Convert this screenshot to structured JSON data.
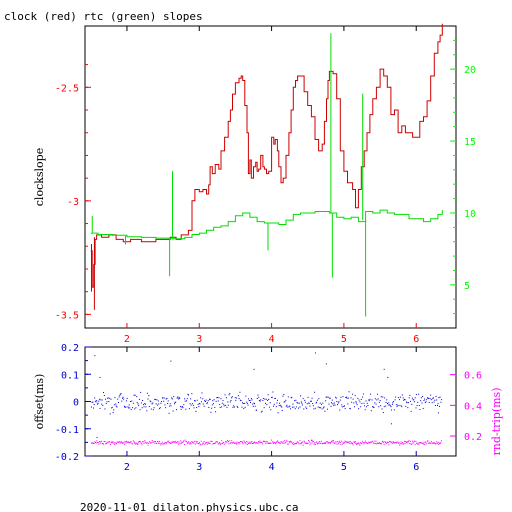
{
  "chart_data": [
    {
      "type": "line",
      "title": "clock (red) rtc (green) slopes",
      "ylabel": "clockslope",
      "xlim": [
        1.42,
        6.55
      ],
      "ylim": [
        -3.56,
        -2.23
      ],
      "y2lim": [
        2.0,
        23.0
      ],
      "grid": false,
      "colors": {
        "frame": "#000000",
        "left_axis": "#ff0000",
        "right_axis": "#00ff00",
        "bottom_axis": "#ff0000"
      },
      "x_ticks": [
        2,
        3,
        4,
        5,
        6
      ],
      "x_tick_labels": [
        "2",
        "3",
        "4",
        "5",
        "6"
      ],
      "y_ticks": [
        -2.5,
        -3,
        -3.5
      ],
      "y_tick_labels": [
        "-2.5",
        "-3",
        "-3.5"
      ],
      "y2_ticks": [
        20,
        15,
        10,
        5
      ],
      "y2_tick_labels": [
        "20",
        "15",
        "10",
        "5"
      ],
      "series": [
        {
          "axis": "left",
          "color": "#cc0000",
          "x": [
            1.5,
            1.52,
            1.54,
            1.56,
            1.58,
            1.65,
            1.75,
            1.85,
            1.95,
            2.05,
            2.2,
            2.4,
            2.6,
            2.68,
            2.75,
            2.85,
            2.9,
            2.94,
            2.97,
            3.0,
            3.05,
            3.1,
            3.13,
            3.15,
            3.18,
            3.22,
            3.27,
            3.3,
            3.35,
            3.4,
            3.43,
            3.46,
            3.5,
            3.55,
            3.58,
            3.6,
            3.63,
            3.66,
            3.68,
            3.7,
            3.72,
            3.75,
            3.78,
            3.8,
            3.82,
            3.85,
            3.88,
            3.9,
            3.93,
            3.96,
            4.0,
            4.03,
            4.05,
            4.08,
            4.1,
            4.13,
            4.16,
            4.2,
            4.24,
            4.27,
            4.3,
            4.33,
            4.36,
            4.4,
            4.45,
            4.5,
            4.55,
            4.6,
            4.65,
            4.7,
            4.73,
            4.76,
            4.78,
            4.8,
            4.85,
            4.9,
            4.95,
            5.0,
            5.05,
            5.08,
            5.12,
            5.16,
            5.2,
            5.24,
            5.28,
            5.32,
            5.36,
            5.4,
            5.45,
            5.5,
            5.55,
            5.6,
            5.65,
            5.7,
            5.75,
            5.8,
            5.85,
            5.9,
            5.95,
            6.0,
            6.05,
            6.1,
            6.15,
            6.2,
            6.25,
            6.3,
            6.33,
            6.36
          ],
          "values": [
            -3.22,
            -3.38,
            -3.28,
            -3.17,
            -3.15,
            -3.16,
            -3.15,
            -3.17,
            -3.18,
            -3.17,
            -3.18,
            -3.17,
            -3.16,
            -3.17,
            -3.15,
            -3.13,
            -3.0,
            -2.95,
            -2.95,
            -2.96,
            -2.95,
            -2.97,
            -2.93,
            -2.85,
            -2.88,
            -2.84,
            -2.86,
            -2.78,
            -2.72,
            -2.65,
            -2.6,
            -2.53,
            -2.48,
            -2.46,
            -2.45,
            -2.47,
            -2.58,
            -2.7,
            -2.88,
            -2.82,
            -2.9,
            -2.85,
            -2.83,
            -2.87,
            -2.86,
            -2.8,
            -2.85,
            -2.86,
            -2.88,
            -2.87,
            -2.72,
            -2.75,
            -2.73,
            -2.78,
            -2.85,
            -2.92,
            -2.9,
            -2.8,
            -2.7,
            -2.6,
            -2.5,
            -2.47,
            -2.45,
            -2.45,
            -2.52,
            -2.58,
            -2.63,
            -2.73,
            -2.78,
            -2.75,
            -2.65,
            -2.55,
            -2.47,
            -2.43,
            -2.44,
            -2.55,
            -2.78,
            -2.87,
            -2.92,
            -2.92,
            -2.95,
            -3.03,
            -2.95,
            -2.85,
            -2.78,
            -2.7,
            -2.62,
            -2.55,
            -2.5,
            -2.42,
            -2.45,
            -2.5,
            -2.62,
            -2.6,
            -2.7,
            -2.67,
            -2.7,
            -2.7,
            -2.72,
            -2.72,
            -2.65,
            -2.63,
            -2.56,
            -2.45,
            -2.35,
            -2.3,
            -2.27,
            -2.22
          ]
        },
        {
          "axis": "right",
          "color": "#00dd00",
          "x": [
            1.5,
            1.6,
            1.8,
            2.0,
            2.2,
            2.4,
            2.6,
            2.8,
            2.9,
            3.0,
            3.1,
            3.2,
            3.3,
            3.4,
            3.5,
            3.6,
            3.7,
            3.8,
            3.9,
            4.0,
            4.1,
            4.2,
            4.3,
            4.4,
            4.5,
            4.6,
            4.7,
            4.8,
            4.9,
            5.0,
            5.1,
            5.2,
            5.3,
            5.4,
            5.5,
            5.6,
            5.7,
            5.8,
            5.9,
            6.0,
            6.1,
            6.2,
            6.3,
            6.36
          ],
          "values": [
            8.6,
            8.5,
            8.45,
            8.35,
            8.3,
            8.25,
            8.2,
            8.3,
            8.5,
            8.6,
            8.8,
            9.0,
            9.1,
            9.4,
            9.8,
            10.0,
            9.7,
            9.4,
            9.3,
            9.3,
            9.2,
            9.5,
            9.9,
            10.0,
            10.0,
            10.1,
            10.1,
            10.0,
            9.7,
            9.6,
            9.7,
            9.4,
            10.1,
            10.0,
            10.2,
            10.0,
            9.9,
            9.9,
            9.6,
            9.6,
            9.4,
            9.6,
            9.9,
            10.2
          ]
        }
      ],
      "spikes": [
        {
          "axis": "left",
          "color": "#cc0000",
          "x": [
            1.51,
            1.55
          ],
          "from": [
            -3.19,
            -3.16
          ],
          "to": [
            -3.4,
            -3.48
          ]
        },
        {
          "axis": "right",
          "color": "#00dd00",
          "x": [
            1.52,
            1.98,
            2.59,
            2.63,
            3.95,
            4.82,
            4.84,
            5.26,
            5.3
          ],
          "from": [
            8.6,
            8.4,
            8.2,
            8.2,
            9.3,
            10.0,
            10.0,
            9.5,
            9.5
          ],
          "to": [
            9.8,
            7.8,
            5.6,
            12.9,
            7.4,
            22.5,
            5.5,
            18.3,
            2.8
          ]
        }
      ]
    },
    {
      "type": "scatter",
      "ylabel": "offset(ms)",
      "y2label": "rnd-trip(ms)",
      "xlim": [
        1.42,
        6.55
      ],
      "ylim": [
        -0.2,
        0.2
      ],
      "y2lim": [
        0.07,
        0.78
      ],
      "grid": false,
      "colors": {
        "frame": "#000000",
        "left_axis": "#0000cc",
        "right_axis": "#ff00ff",
        "bottom_axis": "#0000cc"
      },
      "x_ticks": [
        2,
        3,
        4,
        5,
        6
      ],
      "x_tick_labels": [
        "2",
        "3",
        "4",
        "5",
        "6"
      ],
      "y_ticks": [
        0.2,
        0.1,
        0,
        -0.1,
        -0.2
      ],
      "y_tick_labels": [
        "0.2",
        "0.1",
        "0",
        "-0.1",
        "-0.2"
      ],
      "y2_ticks": [
        0.6,
        0.4,
        0.2
      ],
      "y2_tick_labels": [
        "0.6",
        "0.4",
        "0.2"
      ],
      "series": [
        {
          "axis": "left",
          "color": "#0000cc",
          "x_range": [
            1.5,
            6.35
          ],
          "center": 0.0,
          "spread": 0.03,
          "outliers": [
            [
              1.55,
              0.17
            ],
            [
              1.58,
              -0.13
            ],
            [
              1.62,
              0.09
            ],
            [
              2.6,
              0.15
            ],
            [
              3.75,
              0.12
            ],
            [
              4.55,
              -0.14
            ],
            [
              4.6,
              0.18
            ],
            [
              4.75,
              0.14
            ],
            [
              5.55,
              0.12
            ],
            [
              5.6,
              0.09
            ],
            [
              5.65,
              -0.08
            ],
            [
              6.3,
              -0.04
            ]
          ]
        },
        {
          "axis": "right",
          "color": "#ff00ff",
          "x_range": [
            1.5,
            6.35
          ],
          "center": 0.16,
          "spread": 0.012
        }
      ]
    }
  ],
  "footer": "2020-11-01 dilaton.physics.ubc.ca"
}
